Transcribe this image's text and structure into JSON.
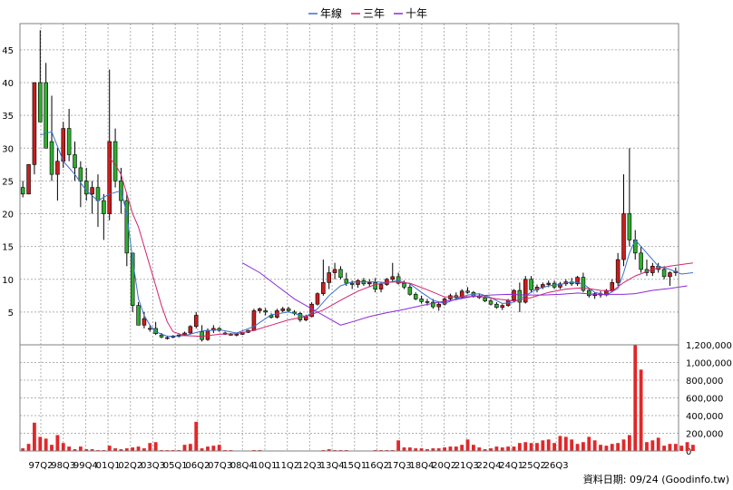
{
  "chart_data": {
    "type": "candlestick",
    "legend": [
      {
        "name": "年線",
        "color": "#3a6fd0"
      },
      {
        "name": "三年",
        "color": "#d4226e"
      },
      {
        "name": "十年",
        "color": "#8a2bd8"
      }
    ],
    "legend_placement": "top-center",
    "grid": true,
    "price_axis": {
      "ticks": [
        5,
        10,
        15,
        20,
        25,
        30,
        35,
        40,
        45
      ],
      "range": [
        0,
        49
      ]
    },
    "volume_axis": {
      "tick_labels": [
        "0",
        "200,000",
        "400,000",
        "600,000",
        "800,000",
        "1,000,000",
        "1,200,000"
      ],
      "tick_values": [
        0,
        200000,
        400000,
        600000,
        800000,
        1000000,
        1200000
      ],
      "range": [
        0,
        1200000
      ]
    },
    "x_labels": [
      "97Q2",
      "98Q3",
      "99Q4",
      "01Q1",
      "02Q2",
      "03Q3",
      "05Q1",
      "06Q2",
      "07Q3",
      "08Q4",
      "10Q1",
      "11Q2",
      "12Q3",
      "13Q4",
      "15Q1",
      "16Q2",
      "17Q3",
      "18Q4",
      "20Q2",
      "21Q3",
      "22Q4",
      "24Q1",
      "25Q2",
      "26Q3"
    ],
    "candles": [
      [
        24,
        25,
        22.5,
        23
      ],
      [
        23,
        27.5,
        23,
        27.5
      ],
      [
        27.5,
        40,
        26,
        40
      ],
      [
        40,
        48,
        34,
        34
      ],
      [
        40,
        43,
        30,
        30
      ],
      [
        31,
        38,
        25,
        26
      ],
      [
        26,
        30,
        22,
        28
      ],
      [
        28,
        34,
        27,
        33
      ],
      [
        33,
        36,
        28,
        29
      ],
      [
        29,
        31,
        25,
        27
      ],
      [
        27,
        28,
        21,
        25
      ],
      [
        25,
        27,
        22,
        23
      ],
      [
        23,
        25,
        20,
        24
      ],
      [
        24,
        26,
        18,
        22
      ],
      [
        22,
        23,
        16,
        20
      ],
      [
        20,
        42,
        19,
        31
      ],
      [
        31,
        33,
        24,
        25
      ],
      [
        25,
        27,
        20,
        22
      ],
      [
        22,
        23,
        12,
        14
      ],
      [
        14,
        14,
        5,
        6
      ],
      [
        6,
        6.5,
        3,
        3
      ],
      [
        3,
        5,
        2.5,
        4
      ],
      [
        2.5,
        3,
        2,
        2.5
      ],
      [
        2.5,
        3.5,
        1.5,
        1.7
      ],
      [
        1.5,
        1.8,
        1,
        1.2
      ],
      [
        1,
        1.4,
        0.8,
        1.1
      ],
      [
        1.2,
        1.5,
        1,
        1.3
      ],
      [
        1.3,
        1.6,
        1.1,
        1.5
      ],
      [
        1.5,
        2,
        1.4,
        1.8
      ],
      [
        1.8,
        3,
        1.6,
        2.8
      ],
      [
        2.8,
        5,
        2.5,
        4.5
      ],
      [
        2,
        3,
        0.5,
        0.8
      ],
      [
        0.8,
        2.5,
        0.6,
        2.2
      ],
      [
        2.2,
        3,
        1.8,
        2.5
      ],
      [
        2.5,
        2.7,
        2,
        2.2
      ],
      [
        1.8,
        2,
        1.5,
        1.6
      ],
      [
        1.6,
        1.8,
        1.4,
        1.5
      ],
      [
        1.5,
        1.7,
        1.3,
        1.6
      ],
      [
        1.6,
        2,
        1.5,
        1.9
      ],
      [
        1.9,
        2.3,
        1.8,
        2.2
      ],
      [
        2.2,
        5.5,
        2.1,
        5.2
      ],
      [
        5.2,
        5.7,
        4.8,
        5.5
      ],
      [
        5.2,
        5.6,
        4.5,
        5
      ],
      [
        4.5,
        4.8,
        4,
        4.2
      ],
      [
        4.2,
        5.5,
        4,
        5.2
      ],
      [
        5.2,
        5.8,
        5,
        5.5
      ],
      [
        5.5,
        5.8,
        5,
        5.2
      ],
      [
        5,
        5.3,
        4.5,
        4.8
      ],
      [
        4.8,
        5,
        3.5,
        3.8
      ],
      [
        3.8,
        4.6,
        3.6,
        4.3
      ],
      [
        4.3,
        6.5,
        4.2,
        6.2
      ],
      [
        6.2,
        8,
        6,
        7.8
      ],
      [
        7.8,
        13,
        7.5,
        9.5
      ],
      [
        9.5,
        12,
        8.5,
        11
      ],
      [
        11,
        12.5,
        10,
        11.5
      ],
      [
        11.5,
        12,
        10,
        10.3
      ],
      [
        10,
        11,
        9,
        9.4
      ],
      [
        9.4,
        9.8,
        8.5,
        9.2
      ],
      [
        9.2,
        10,
        8.7,
        9.8
      ],
      [
        9.8,
        10.2,
        9,
        9.3
      ],
      [
        9.3,
        10,
        8.8,
        9.5
      ],
      [
        9.5,
        10.2,
        8,
        8.5
      ],
      [
        8.5,
        9.5,
        8,
        9.2
      ],
      [
        9.2,
        10.2,
        9,
        10
      ],
      [
        10,
        12.5,
        9.5,
        10.4
      ],
      [
        10.4,
        11,
        9.2,
        9.4
      ],
      [
        9.4,
        9.8,
        8.5,
        8.8
      ],
      [
        8.8,
        9.2,
        7.5,
        7.7
      ],
      [
        7.7,
        8,
        6.8,
        7
      ],
      [
        7,
        7.5,
        6.3,
        6.6
      ],
      [
        6.6,
        7,
        6,
        6.5
      ],
      [
        6.5,
        7,
        5.5,
        5.8
      ],
      [
        5.8,
        6.5,
        5.2,
        6.2
      ],
      [
        6.2,
        7.2,
        6,
        7
      ],
      [
        7,
        7.8,
        6.8,
        7.5
      ],
      [
        7.5,
        8,
        7,
        7.2
      ],
      [
        7.2,
        8.5,
        7,
        8.2
      ],
      [
        8.2,
        8.8,
        7.8,
        8
      ],
      [
        8,
        8.2,
        7.2,
        7.4
      ],
      [
        7.4,
        7.8,
        7,
        7.2
      ],
      [
        7.2,
        7.5,
        6.5,
        6.7
      ],
      [
        6.7,
        7,
        6,
        6.2
      ],
      [
        6.2,
        6.5,
        5.5,
        5.7
      ],
      [
        5.7,
        6.2,
        5.3,
        6
      ],
      [
        6,
        7,
        5.8,
        6.8
      ],
      [
        6.8,
        8.5,
        6.5,
        8.3
      ],
      [
        8.3,
        9.5,
        5,
        6.5
      ],
      [
        6.5,
        10.5,
        6.3,
        10
      ],
      [
        10,
        10.5,
        8,
        8.4
      ],
      [
        8.4,
        9.2,
        8,
        8.8
      ],
      [
        8.8,
        9.5,
        8.5,
        9.2
      ],
      [
        9.2,
        9.8,
        8.8,
        9.4
      ],
      [
        9.4,
        9.8,
        8.5,
        8.8
      ],
      [
        8.8,
        9.6,
        8.5,
        9.3
      ],
      [
        9.3,
        10,
        9,
        9.6
      ],
      [
        9.6,
        10.2,
        9,
        9.3
      ],
      [
        9.3,
        10.5,
        9,
        10.3
      ],
      [
        10.3,
        11,
        8,
        8.3
      ],
      [
        8.3,
        8.6,
        7.2,
        7.5
      ],
      [
        7.5,
        8,
        7,
        7.8
      ],
      [
        7.8,
        8.2,
        7.2,
        7.6
      ],
      [
        7.6,
        8.5,
        7.4,
        8.3
      ],
      [
        8.3,
        10,
        8,
        9.5
      ],
      [
        9.5,
        14,
        9,
        13
      ],
      [
        13,
        26,
        12,
        20
      ],
      [
        20,
        30,
        15,
        16
      ],
      [
        16,
        17.5,
        13,
        14
      ],
      [
        14,
        15,
        11,
        11.5
      ],
      [
        11.5,
        13,
        10.5,
        11
      ],
      [
        11,
        12.5,
        10.5,
        12
      ],
      [
        12,
        12.5,
        11,
        11.5
      ],
      [
        11.5,
        12,
        10,
        10.4
      ],
      [
        10.4,
        11.2,
        9,
        11
      ],
      [
        11,
        11.8,
        10.5,
        11.2
      ]
    ],
    "line_year": [
      [
        3,
        32
      ],
      [
        5,
        32.5
      ],
      [
        7,
        28
      ],
      [
        9,
        26
      ],
      [
        11,
        23.5
      ],
      [
        13,
        22
      ],
      [
        15,
        23
      ],
      [
        17,
        23.5
      ],
      [
        18,
        20
      ],
      [
        19,
        13
      ],
      [
        20,
        7
      ],
      [
        21,
        4.5
      ],
      [
        22,
        3
      ],
      [
        23,
        2
      ],
      [
        25,
        1.3
      ],
      [
        28,
        1.4
      ],
      [
        31,
        2.1
      ],
      [
        34,
        2.3
      ],
      [
        37,
        1.8
      ],
      [
        40,
        2.8
      ],
      [
        43,
        4.6
      ],
      [
        46,
        5
      ],
      [
        49,
        4.3
      ],
      [
        51,
        5.5
      ],
      [
        53,
        7.5
      ],
      [
        55,
        9
      ],
      [
        57,
        9.6
      ],
      [
        59,
        9.6
      ],
      [
        61,
        9.6
      ],
      [
        63,
        9.5
      ],
      [
        65,
        9.8
      ],
      [
        67,
        9.3
      ],
      [
        69,
        8
      ],
      [
        71,
        6.8
      ],
      [
        73,
        6.3
      ],
      [
        75,
        7
      ],
      [
        77,
        7.6
      ],
      [
        79,
        7.8
      ],
      [
        81,
        7.2
      ],
      [
        83,
        6.3
      ],
      [
        85,
        6.5
      ],
      [
        87,
        7.5
      ],
      [
        89,
        8.5
      ],
      [
        91,
        9
      ],
      [
        93,
        9.2
      ],
      [
        95,
        9.6
      ],
      [
        97,
        9.3
      ],
      [
        99,
        8
      ],
      [
        101,
        7.6
      ],
      [
        103,
        8.6
      ],
      [
        104,
        11
      ],
      [
        105,
        14
      ],
      [
        106,
        16
      ],
      [
        108,
        14
      ],
      [
        110,
        12
      ],
      [
        112,
        11.5
      ],
      [
        114,
        10.8
      ],
      [
        116,
        11
      ]
    ],
    "line_3yr": [
      [
        15,
        28.5
      ],
      [
        16,
        27.5
      ],
      [
        17,
        26
      ],
      [
        18,
        23
      ],
      [
        19,
        20
      ],
      [
        20,
        18
      ],
      [
        21,
        15
      ],
      [
        22,
        12
      ],
      [
        23,
        9
      ],
      [
        24,
        6
      ],
      [
        25,
        3.5
      ],
      [
        26,
        2
      ],
      [
        28,
        1.4
      ],
      [
        31,
        1.3
      ],
      [
        34,
        1.6
      ],
      [
        37,
        1.7
      ],
      [
        40,
        2.2
      ],
      [
        43,
        3
      ],
      [
        46,
        3.8
      ],
      [
        49,
        4.3
      ],
      [
        52,
        5.3
      ],
      [
        55,
        6.8
      ],
      [
        58,
        8.2
      ],
      [
        61,
        9.2
      ],
      [
        64,
        9.6
      ],
      [
        67,
        9.4
      ],
      [
        70,
        8.4
      ],
      [
        73,
        7.3
      ],
      [
        76,
        7.3
      ],
      [
        79,
        7.4
      ],
      [
        82,
        7
      ],
      [
        85,
        6.7
      ],
      [
        88,
        7.2
      ],
      [
        91,
        8
      ],
      [
        94,
        8.5
      ],
      [
        97,
        8.7
      ],
      [
        100,
        8.3
      ],
      [
        102,
        8.2
      ],
      [
        104,
        9.5
      ],
      [
        106,
        10.5
      ],
      [
        109,
        11.5
      ],
      [
        112,
        12
      ],
      [
        116,
        12.5
      ]
    ],
    "line_10yr": [
      [
        38,
        12.5
      ],
      [
        41,
        11
      ],
      [
        44,
        9
      ],
      [
        47,
        7
      ],
      [
        50,
        5.5
      ],
      [
        53,
        4
      ],
      [
        55,
        3
      ],
      [
        57,
        3.5
      ],
      [
        60,
        4.3
      ],
      [
        63,
        4.9
      ],
      [
        66,
        5.4
      ],
      [
        69,
        6
      ],
      [
        72,
        6.5
      ],
      [
        75,
        6.9
      ],
      [
        78,
        7.4
      ],
      [
        81,
        7.6
      ],
      [
        84,
        7.7
      ],
      [
        87,
        7.6
      ],
      [
        90,
        7.6
      ],
      [
        93,
        7.7
      ],
      [
        96,
        7.9
      ],
      [
        99,
        7.7
      ],
      [
        102,
        7.7
      ],
      [
        104,
        7.7
      ],
      [
        106,
        7.8
      ],
      [
        109,
        8.3
      ],
      [
        112,
        8.6
      ],
      [
        115,
        9
      ]
    ],
    "volume": [
      30000,
      80000,
      320000,
      160000,
      140000,
      70000,
      180000,
      90000,
      50000,
      20000,
      50000,
      20000,
      20000,
      10000,
      10000,
      60000,
      30000,
      20000,
      30000,
      40000,
      50000,
      30000,
      90000,
      100000,
      10000,
      10000,
      10000,
      10000,
      70000,
      80000,
      330000,
      30000,
      50000,
      60000,
      70000,
      10000,
      10000,
      5000,
      5000,
      5000,
      10000,
      10000,
      5000,
      5000,
      5000,
      5000,
      5000,
      5000,
      5000,
      5000,
      5000,
      5000,
      10000,
      20000,
      10000,
      10000,
      10000,
      5000,
      5000,
      5000,
      5000,
      10000,
      10000,
      10000,
      10000,
      120000,
      40000,
      40000,
      30000,
      30000,
      20000,
      30000,
      30000,
      40000,
      50000,
      50000,
      70000,
      130000,
      70000,
      40000,
      20000,
      30000,
      50000,
      40000,
      50000,
      50000,
      90000,
      100000,
      90000,
      90000,
      120000,
      130000,
      90000,
      170000,
      160000,
      130000,
      80000,
      100000,
      160000,
      120000,
      70000,
      60000,
      80000,
      90000,
      130000,
      180000,
      1200000,
      920000,
      100000,
      120000,
      150000,
      60000,
      80000,
      80000,
      60000,
      100000,
      70000
    ],
    "source_note": "資料日期: 09/24 (Goodinfo.tw)"
  }
}
